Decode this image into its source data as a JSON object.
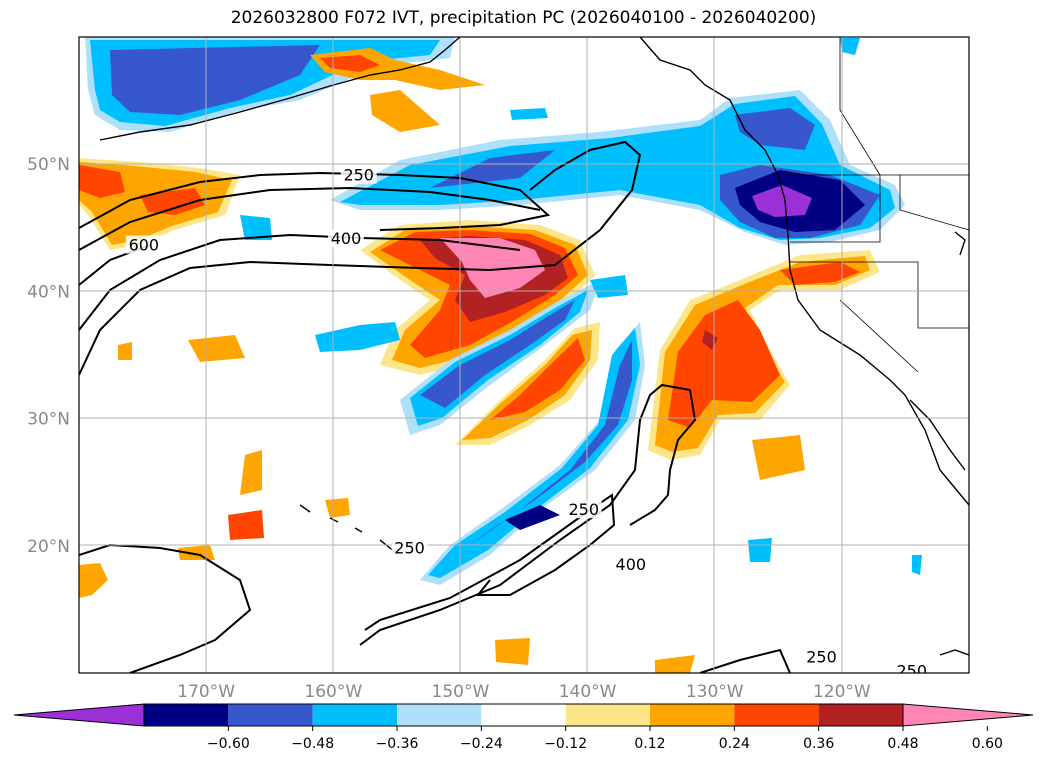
{
  "title": "2026032800 F072 IVT, precipitation PC (2026040100 - 2026040200)",
  "map": {
    "lon_range": [
      -180,
      -110
    ],
    "lat_range": [
      10,
      60
    ],
    "lon_ticks": [
      -170,
      -160,
      -150,
      -140,
      -130,
      -120
    ],
    "lat_ticks": [
      20,
      30,
      40,
      50
    ],
    "lon_labels": [
      "170°W",
      "160°W",
      "150°W",
      "140°W",
      "130°W",
      "120°W"
    ],
    "lat_labels": [
      "20°N",
      "30°N",
      "40°N",
      "50°N"
    ]
  },
  "contour_labels": [
    {
      "text": "250",
      "lon": -158.0,
      "lat": 49.1
    },
    {
      "text": "600",
      "lon": -174.9,
      "lat": 43.6
    },
    {
      "text": "400",
      "lon": -159.0,
      "lat": 44.1
    },
    {
      "text": "250",
      "lon": -154.0,
      "lat": 19.8
    },
    {
      "text": "250",
      "lon": -140.3,
      "lat": 22.8
    },
    {
      "text": "400",
      "lon": -136.6,
      "lat": 18.5
    },
    {
      "text": "250",
      "lon": -121.6,
      "lat": 11.2
    },
    {
      "text": "250",
      "lon": -114.5,
      "lat": 10.1
    }
  ],
  "colorbar": {
    "levels": [
      "−0.60",
      "−0.48",
      "−0.36",
      "−0.24",
      "−0.12",
      "0.12",
      "0.24",
      "0.36",
      "0.48",
      "0.60"
    ],
    "colors": [
      "#9b30d8",
      "#000085",
      "#3757cc",
      "#00bfff",
      "#aee0fa",
      "#ffffff",
      "#fde68a",
      "#ffa500",
      "#ff4500",
      "#b22222",
      "#ff86b4"
    ]
  },
  "palette": {
    "land_line": "#000000",
    "grid": "#b0b0b0",
    "contour": "#000000"
  }
}
